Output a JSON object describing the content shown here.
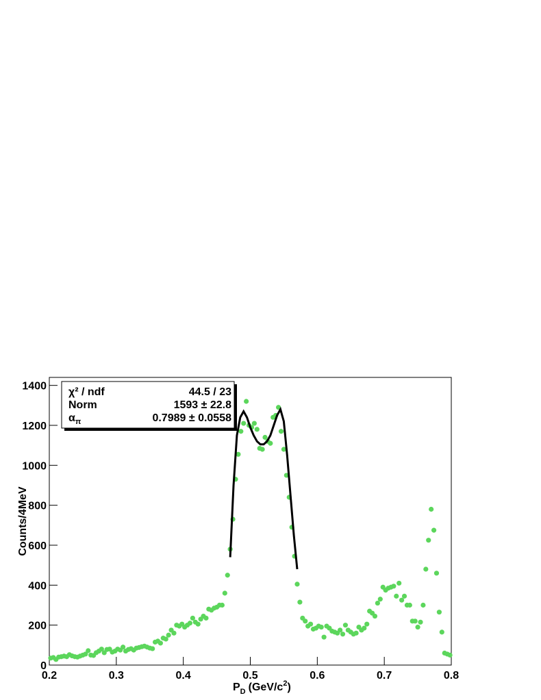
{
  "chart_data": {
    "type": "scatter",
    "ylabel": "Counts/4MeV",
    "xlabel": {
      "main": "P",
      "sub": "D",
      "unit": "(GeV/c",
      "sup": "2",
      "close": ")"
    },
    "xlim": [
      0.2,
      0.8
    ],
    "xticks": [
      0.2,
      0.3,
      0.4,
      0.5,
      0.6,
      0.7,
      0.8
    ],
    "ylim": [
      0,
      1440
    ],
    "yticks": [
      0,
      200,
      400,
      600,
      800,
      1000,
      1200,
      1400
    ],
    "series": [
      {
        "name": "data",
        "color": "#5cd65c",
        "x": [
          0.202,
          0.206,
          0.21,
          0.214,
          0.218,
          0.222,
          0.226,
          0.23,
          0.234,
          0.238,
          0.242,
          0.246,
          0.25,
          0.254,
          0.258,
          0.262,
          0.266,
          0.27,
          0.274,
          0.278,
          0.282,
          0.286,
          0.29,
          0.294,
          0.298,
          0.302,
          0.306,
          0.31,
          0.314,
          0.318,
          0.322,
          0.326,
          0.33,
          0.334,
          0.338,
          0.342,
          0.346,
          0.35,
          0.354,
          0.358,
          0.362,
          0.366,
          0.37,
          0.374,
          0.378,
          0.382,
          0.386,
          0.39,
          0.394,
          0.398,
          0.402,
          0.406,
          0.41,
          0.414,
          0.418,
          0.422,
          0.426,
          0.43,
          0.434,
          0.438,
          0.442,
          0.446,
          0.45,
          0.454,
          0.458,
          0.462,
          0.466,
          0.47,
          0.474,
          0.478,
          0.482,
          0.486,
          0.49,
          0.494,
          0.498,
          0.502,
          0.506,
          0.51,
          0.514,
          0.518,
          0.522,
          0.526,
          0.53,
          0.534,
          0.538,
          0.542,
          0.546,
          0.55,
          0.554,
          0.558,
          0.562,
          0.566,
          0.57,
          0.574,
          0.578,
          0.582,
          0.586,
          0.59,
          0.594,
          0.598,
          0.602,
          0.606,
          0.61,
          0.614,
          0.618,
          0.622,
          0.626,
          0.63,
          0.634,
          0.638,
          0.642,
          0.646,
          0.65,
          0.654,
          0.658,
          0.662,
          0.666,
          0.67,
          0.674,
          0.678,
          0.682,
          0.686,
          0.69,
          0.694,
          0.698,
          0.702,
          0.706,
          0.71,
          0.714,
          0.718,
          0.722,
          0.726,
          0.73,
          0.734,
          0.738,
          0.742,
          0.746,
          0.75,
          0.754,
          0.758,
          0.762,
          0.766,
          0.77,
          0.774,
          0.778,
          0.782,
          0.786,
          0.79,
          0.794,
          0.798
        ],
        "values": [
          35,
          38,
          28,
          40,
          42,
          45,
          42,
          52,
          46,
          42,
          40,
          45,
          50,
          55,
          72,
          50,
          48,
          62,
          70,
          80,
          62,
          78,
          80,
          65,
          70,
          80,
          75,
          90,
          70,
          78,
          82,
          75,
          85,
          88,
          92,
          95,
          90,
          85,
          82,
          115,
          120,
          110,
          135,
          130,
          150,
          175,
          160,
          200,
          195,
          205,
          190,
          200,
          210,
          235,
          215,
          205,
          230,
          245,
          235,
          280,
          275,
          285,
          290,
          300,
          300,
          360,
          450,
          580,
          730,
          930,
          1055,
          1170,
          1210,
          1320,
          1200,
          1190,
          1210,
          1180,
          1085,
          1080,
          1140,
          1120,
          1110,
          1240,
          1250,
          1290,
          1170,
          1080,
          950,
          840,
          690,
          545,
          405,
          315,
          235,
          220,
          195,
          205,
          180,
          185,
          195,
          190,
          140,
          195,
          185,
          170,
          165,
          160,
          175,
          155,
          200,
          175,
          165,
          155,
          160,
          190,
          175,
          185,
          205,
          270,
          260,
          245,
          310,
          330,
          390,
          375,
          385,
          390,
          395,
          345,
          410,
          325,
          345,
          300,
          300,
          220,
          220,
          190,
          215,
          300,
          480,
          625,
          780,
          675,
          460,
          265,
          165,
          60,
          55,
          50
        ]
      },
      {
        "name": "fit",
        "color": "#000000",
        "x": [
          0.47,
          0.475,
          0.48,
          0.485,
          0.49,
          0.495,
          0.5,
          0.505,
          0.51,
          0.515,
          0.52,
          0.525,
          0.53,
          0.535,
          0.54,
          0.545,
          0.55,
          0.555,
          0.56,
          0.565,
          0.57
        ],
        "values": [
          540,
          900,
          1150,
          1240,
          1270,
          1240,
          1190,
          1150,
          1120,
          1105,
          1105,
          1120,
          1150,
          1200,
          1250,
          1280,
          1220,
          1050,
          850,
          650,
          480
        ]
      }
    ],
    "stats": [
      {
        "label": "χ² / ndf",
        "value": "44.5 / 23"
      },
      {
        "label": "Norm",
        "value": "1593 ± 22.8"
      },
      {
        "label": "α",
        "label_sub": "π",
        "value": "0.7989 ± 0.0558"
      }
    ]
  }
}
